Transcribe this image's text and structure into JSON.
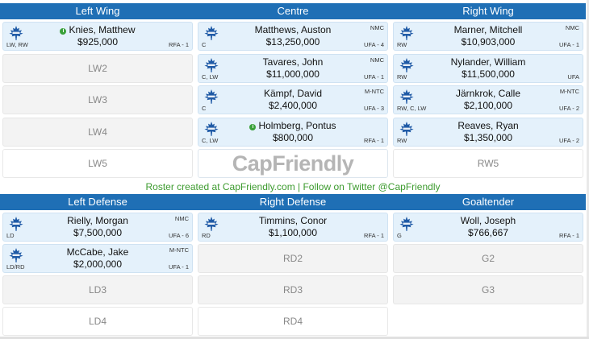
{
  "header_top": [
    "Left Wing",
    "Centre",
    "Right Wing"
  ],
  "forwards": [
    [
      {
        "type": "player",
        "name": "Knies, Matthew",
        "salary": "$925,000",
        "pos": "LW, RW",
        "status": "RFA - 1",
        "clause": "",
        "info": true
      },
      {
        "type": "player",
        "name": "Matthews, Auston",
        "salary": "$13,250,000",
        "pos": "C",
        "status": "UFA - 4",
        "clause": "NMC",
        "info": false
      },
      {
        "type": "player",
        "name": "Marner, Mitchell",
        "salary": "$10,903,000",
        "pos": "RW",
        "status": "UFA - 1",
        "clause": "NMC",
        "info": false
      }
    ],
    [
      {
        "type": "empty",
        "label": "LW2"
      },
      {
        "type": "player",
        "name": "Tavares, John",
        "salary": "$11,000,000",
        "pos": "C, LW",
        "status": "UFA - 1",
        "clause": "NMC",
        "info": false
      },
      {
        "type": "player",
        "name": "Nylander, William",
        "salary": "$11,500,000",
        "pos": "RW",
        "status": "UFA",
        "clause": "",
        "info": false
      }
    ],
    [
      {
        "type": "empty",
        "label": "LW3"
      },
      {
        "type": "player",
        "name": "Kämpf, David",
        "salary": "$2,400,000",
        "pos": "C",
        "status": "UFA - 3",
        "clause": "M-NTC",
        "info": false
      },
      {
        "type": "player",
        "name": "Järnkrok, Calle",
        "salary": "$2,100,000",
        "pos": "RW, C, LW",
        "status": "UFA - 2",
        "clause": "M-NTC",
        "info": false
      }
    ],
    [
      {
        "type": "empty",
        "label": "LW4"
      },
      {
        "type": "player",
        "name": "Holmberg, Pontus",
        "salary": "$800,000",
        "pos": "C, LW",
        "status": "RFA - 1",
        "clause": "",
        "info": true
      },
      {
        "type": "player",
        "name": "Reaves, Ryan",
        "salary": "$1,350,000",
        "pos": "RW",
        "status": "UFA - 2",
        "clause": "",
        "info": false
      }
    ],
    [
      {
        "type": "blank",
        "label": "LW5"
      },
      {
        "type": "logo",
        "label": "CapFriendly"
      },
      {
        "type": "blank",
        "label": "RW5"
      }
    ]
  ],
  "credit": "Roster created at CapFriendly.com | Follow on Twitter @CapFriendly",
  "header_bottom": [
    "Left Defense",
    "Right Defense",
    "Goaltender"
  ],
  "defense": [
    [
      {
        "type": "player",
        "name": "Rielly, Morgan",
        "salary": "$7,500,000",
        "pos": "LD",
        "status": "UFA - 6",
        "clause": "NMC",
        "info": false
      },
      {
        "type": "player",
        "name": "Timmins, Conor",
        "salary": "$1,100,000",
        "pos": "RD",
        "status": "RFA - 1",
        "clause": "",
        "info": false
      },
      {
        "type": "player",
        "name": "Woll, Joseph",
        "salary": "$766,667",
        "pos": "G",
        "status": "RFA - 1",
        "clause": "",
        "info": false
      }
    ],
    [
      {
        "type": "player",
        "name": "McCabe, Jake",
        "salary": "$2,000,000",
        "pos": "LD/RD",
        "status": "UFA - 1",
        "clause": "M-NTC",
        "info": false
      },
      {
        "type": "empty",
        "label": "RD2"
      },
      {
        "type": "empty",
        "label": "G2"
      }
    ],
    [
      {
        "type": "empty",
        "label": "LD3"
      },
      {
        "type": "empty",
        "label": "RD3"
      },
      {
        "type": "empty",
        "label": "G3"
      }
    ],
    [
      {
        "type": "blank",
        "label": "LD4"
      },
      {
        "type": "blank",
        "label": "RD4"
      },
      {
        "type": "none"
      }
    ]
  ],
  "colors": {
    "header_bg": "#1f6fb5",
    "player_bg": "#e4f1fb",
    "empty_bg": "#f3f3f3",
    "credit_text": "#3d9b2f",
    "leaf_blue": "#1f5aa6"
  }
}
